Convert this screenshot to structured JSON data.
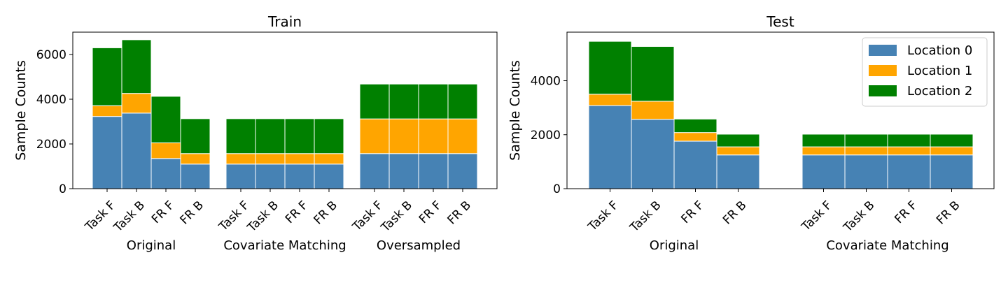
{
  "chart_data": [
    {
      "type": "bar",
      "stacked": true,
      "title": "Train",
      "xlabel": "",
      "ylabel": "Sample Counts",
      "ylim": [
        0,
        7000
      ],
      "yticks": [
        0,
        2000,
        4000,
        6000
      ],
      "groups": [
        {
          "label": "Original",
          "categories": [
            "Task F",
            "Task B",
            "FR F",
            "FR B"
          ]
        },
        {
          "label": "Covariate Matching",
          "categories": [
            "Task F",
            "Task B",
            "FR F",
            "FR B"
          ]
        },
        {
          "label": "Oversampled",
          "categories": [
            "Task F",
            "Task B",
            "FR F",
            "FR B"
          ]
        }
      ],
      "series": [
        {
          "name": "Location 0",
          "color": "#4682b4",
          "values": [
            3230,
            3380,
            1350,
            1100,
            1100,
            1100,
            1100,
            1100,
            1570,
            1570,
            1570,
            1570
          ]
        },
        {
          "name": "Location 1",
          "color": "#ffa500",
          "values": [
            480,
            880,
            700,
            470,
            470,
            470,
            470,
            470,
            1550,
            1550,
            1550,
            1550
          ]
        },
        {
          "name": "Location 2",
          "color": "#008000",
          "values": [
            2590,
            2400,
            2080,
            1560,
            1560,
            1560,
            1560,
            1560,
            1560,
            1560,
            1560,
            1560
          ]
        }
      ],
      "legend": null
    },
    {
      "type": "bar",
      "stacked": true,
      "title": "Test",
      "xlabel": "",
      "ylabel": "Sample Counts",
      "ylim": [
        0,
        5800
      ],
      "yticks": [
        0,
        2000,
        4000
      ],
      "groups": [
        {
          "label": "Original",
          "categories": [
            "Task F",
            "Task B",
            "FR F",
            "FR B"
          ]
        },
        {
          "label": "Covariate Matching",
          "categories": [
            "Task F",
            "Task B",
            "FR F",
            "FR B"
          ]
        }
      ],
      "series": [
        {
          "name": "Location 0",
          "color": "#4682b4",
          "values": [
            3080,
            2570,
            1760,
            1250,
            1250,
            1250,
            1250,
            1250
          ]
        },
        {
          "name": "Location 1",
          "color": "#ffa500",
          "values": [
            420,
            670,
            320,
            300,
            300,
            300,
            300,
            300
          ]
        },
        {
          "name": "Location 2",
          "color": "#008000",
          "values": [
            1960,
            2030,
            500,
            470,
            470,
            470,
            470,
            470
          ]
        }
      ],
      "legend": "top-right"
    }
  ]
}
